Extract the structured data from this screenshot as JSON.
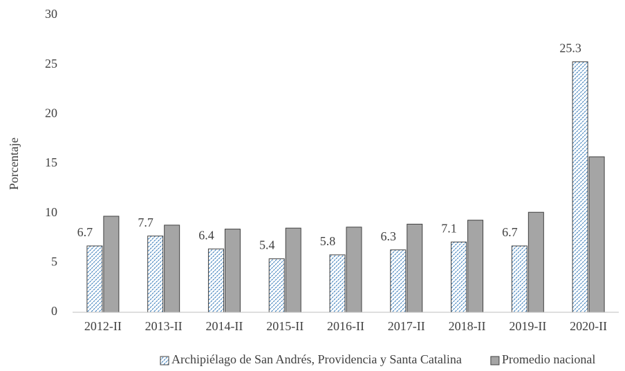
{
  "chart_data": {
    "type": "bar",
    "y_label": "Porcentaje",
    "categories": [
      "2012-II",
      "2013-II",
      "2014-II",
      "2015-II",
      "2016-II",
      "2017-II",
      "2018-II",
      "2019-II",
      "2020-II"
    ],
    "series": [
      {
        "name": "Archipiélago de San Andrés, Providencia y Santa Catalina",
        "color": "#2e75b6",
        "pattern": "hatch",
        "data_labels": true,
        "values": [
          6.7,
          7.7,
          6.4,
          5.4,
          5.8,
          6.3,
          7.1,
          6.7,
          25.3
        ]
      },
      {
        "name": "Promedio nacional",
        "color": "#a5a5a5",
        "pattern": "solid",
        "data_labels": false,
        "values": [
          9.7,
          8.8,
          8.4,
          8.5,
          8.6,
          8.9,
          9.3,
          10.1,
          15.7
        ]
      }
    ],
    "ylim": [
      0,
      30
    ],
    "yticks": [
      0,
      5,
      10,
      15,
      20,
      25,
      30
    ],
    "grid": false,
    "legend": "bottom"
  }
}
